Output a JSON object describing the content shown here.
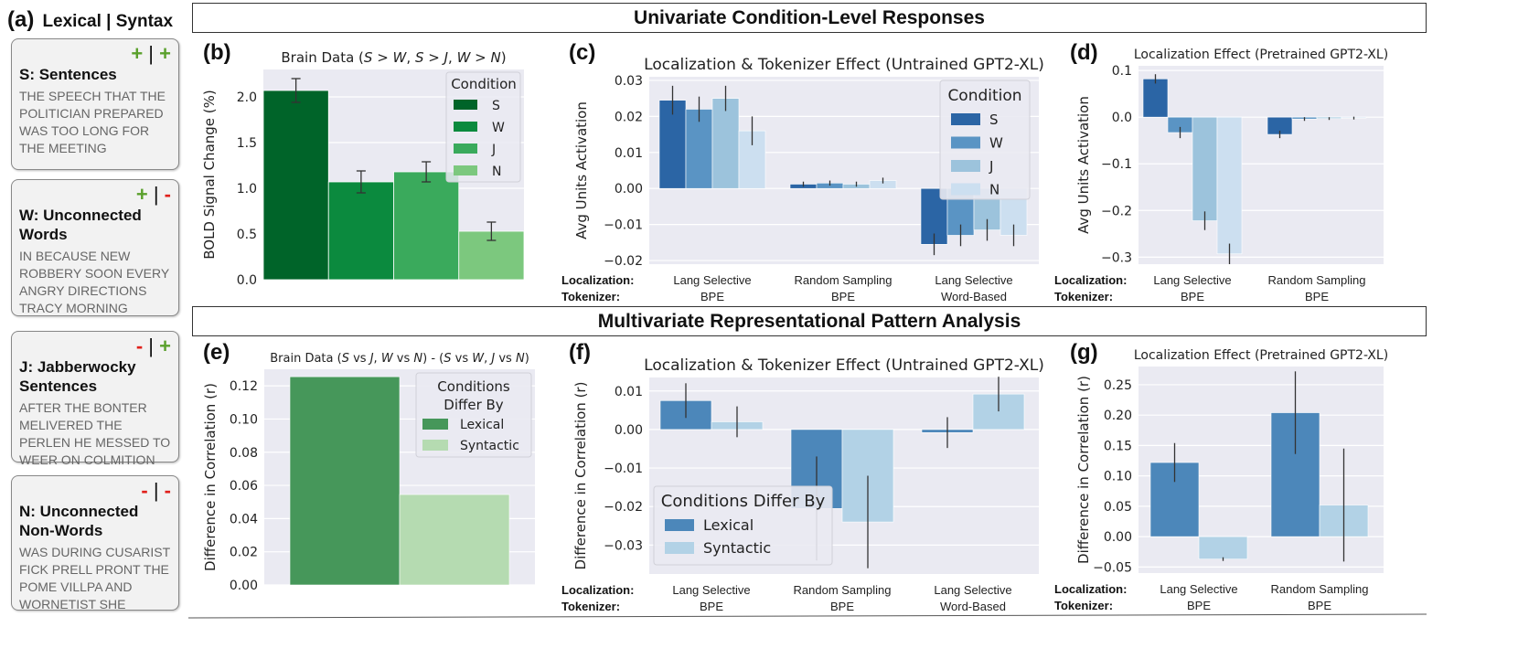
{
  "panel_a": {
    "letter": "(a)",
    "header": "Lexical | Syntax",
    "cards": [
      {
        "lex": "+",
        "syn": "+",
        "title": "S: Sentences",
        "text": "THE SPEECH THAT THE POLITICIAN PREPARED WAS TOO LONG FOR THE MEETING"
      },
      {
        "lex": "+",
        "syn": "-",
        "title": "W: Unconnected Words",
        "text": "IN BECAUSE NEW ROBBERY SOON EVERY ANGRY DIRECTIONS TRACY MORNING"
      },
      {
        "lex": "-",
        "syn": "+",
        "title": "J: Jabberwocky Sentences",
        "text": "AFTER THE BONTER MELIVERED THE PERLEN HE MESSED TO WEER ON COLMITION"
      },
      {
        "lex": "-",
        "syn": "-",
        "title": "N: Unconnected Non-Words",
        "text": "WAS DURING CUSARIST FICK PRELL PRONT THE POME VILLPA AND WORNETIST SHE"
      }
    ]
  },
  "sections": {
    "univariate": "Univariate Condition-Level Responses",
    "multivariate": "Multivariate Representational Pattern Analysis"
  },
  "row_labels": {
    "localization": "Localization:",
    "tokenizer": "Tokenizer:"
  },
  "colors": {
    "greens": [
      "#006429",
      "#0b8a3e",
      "#3aaa5c",
      "#7cc87e"
    ],
    "blues": [
      "#2b65a5",
      "#5a94c4",
      "#9cc3dc",
      "#ccdff0"
    ],
    "lexical_green": "#46975a",
    "syntactic_green": "#b5dbb1",
    "lexical_blue": "#4c87ba",
    "syntactic_blue": "#b2d2e6",
    "plot_bg": "#eaeaf2",
    "grid": "#ffffff"
  },
  "chart_data": [
    {
      "id": "b",
      "letter": "(b)",
      "type": "bar",
      "title": "Brain Data (S > W, S > J, W > N)",
      "ylabel": "BOLD Signal Change (%)",
      "ylim": [
        0,
        2.3
      ],
      "yticks": [
        "0.0",
        "0.5",
        "1.0",
        "1.5",
        "2.0"
      ],
      "ytick_values": [
        0,
        0.5,
        1.0,
        1.5,
        2.0
      ],
      "legend_title": "Condition",
      "legend_position": "top-right",
      "series": [
        {
          "name": "S",
          "value": 2.07,
          "err": 0.13
        },
        {
          "name": "W",
          "value": 1.07,
          "err": 0.12
        },
        {
          "name": "J",
          "value": 1.18,
          "err": 0.11
        },
        {
          "name": "N",
          "value": 0.53,
          "err": 0.1
        }
      ]
    },
    {
      "id": "c",
      "letter": "(c)",
      "type": "bar",
      "title": "Localization & Tokenizer Effect (Untrained GPT2-XL)",
      "ylabel": "Avg Units Activation",
      "ylim": [
        -0.021,
        0.031
      ],
      "yticks": [
        "0.03",
        "0.02",
        "0.01",
        "0.00",
        "−0.01",
        "−0.02"
      ],
      "ytick_values": [
        0.03,
        0.02,
        0.01,
        0,
        -0.01,
        -0.02
      ],
      "legend_title": "Condition",
      "legend_position": "top-right",
      "series_names": [
        "S",
        "W",
        "J",
        "N"
      ],
      "groups": [
        {
          "localization": "Lang Selective",
          "tokenizer": "BPE",
          "values": [
            0.0245,
            0.022,
            0.025,
            0.016
          ],
          "errs": [
            0.004,
            0.0035,
            0.0035,
            0.004
          ]
        },
        {
          "localization": "Random Sampling",
          "tokenizer": "BPE",
          "values": [
            0.0012,
            0.0015,
            0.0012,
            0.0022
          ],
          "errs": [
            0.0007,
            0.0007,
            0.0007,
            0.0008
          ]
        },
        {
          "localization": "Lang Selective",
          "tokenizer": "Word-Based",
          "values": [
            -0.0155,
            -0.013,
            -0.0115,
            -0.013
          ],
          "errs": [
            0.003,
            0.003,
            0.003,
            0.003
          ]
        }
      ]
    },
    {
      "id": "d",
      "letter": "(d)",
      "type": "bar",
      "title": "Localization Effect (Pretrained GPT2-XL)",
      "ylabel": "Avg Units Activation",
      "ylim": [
        -0.315,
        0.11
      ],
      "yticks": [
        "0.1",
        "0.0",
        "−0.1",
        "−0.2",
        "−0.3"
      ],
      "ytick_values": [
        0.1,
        0,
        -0.1,
        -0.2,
        -0.3
      ],
      "series_names": [
        "S",
        "W",
        "J",
        "N"
      ],
      "groups": [
        {
          "localization": "Lang Selective",
          "tokenizer": "BPE",
          "values": [
            0.082,
            -0.033,
            -0.222,
            -0.293
          ],
          "errs": [
            0.01,
            0.012,
            0.02,
            0.022
          ]
        },
        {
          "localization": "Random Sampling",
          "tokenizer": "BPE",
          "values": [
            -0.037,
            -0.004,
            -0.003,
            -0.002
          ],
          "errs": [
            0.008,
            0.004,
            0.003,
            0.003
          ]
        }
      ]
    },
    {
      "id": "e",
      "letter": "(e)",
      "type": "bar",
      "title": "Brain Data (S vs J, W vs N) - (S vs W, J vs N)",
      "ylabel": "Difference in Correlation (r)",
      "ylim": [
        0,
        0.13
      ],
      "yticks": [
        "0.00",
        "0.02",
        "0.04",
        "0.06",
        "0.08",
        "0.10",
        "0.12"
      ],
      "ytick_values": [
        0,
        0.02,
        0.04,
        0.06,
        0.08,
        0.1,
        0.12
      ],
      "legend_title": "Conditions Differ By",
      "legend_position": "top-right",
      "series": [
        {
          "name": "Lexical",
          "value": 0.1255
        },
        {
          "name": "Syntactic",
          "value": 0.0545
        }
      ]
    },
    {
      "id": "f",
      "letter": "(f)",
      "type": "bar",
      "title": "Localization & Tokenizer Effect (Untrained GPT2-XL)",
      "ylabel": "Difference in Correlation (r)",
      "ylim": [
        -0.0375,
        0.0135
      ],
      "yticks": [
        "0.01",
        "0.00",
        "−0.01",
        "−0.02",
        "−0.03"
      ],
      "ytick_values": [
        0.01,
        0,
        -0.01,
        -0.02,
        -0.03
      ],
      "legend_title": "Conditions Differ By",
      "legend_position": "bottom-left",
      "series_names": [
        "Lexical",
        "Syntactic"
      ],
      "groups": [
        {
          "localization": "Lang Selective",
          "tokenizer": "BPE",
          "values": [
            0.0075,
            0.002
          ],
          "errs": [
            0.0045,
            0.004
          ]
        },
        {
          "localization": "Random Sampling",
          "tokenizer": "BPE",
          "values": [
            -0.0205,
            -0.024
          ],
          "errs": [
            0.0135,
            0.012
          ]
        },
        {
          "localization": "Lang Selective",
          "tokenizer": "Word-Based",
          "values": [
            -0.0008,
            0.0092
          ],
          "errs": [
            0.004,
            0.0045
          ]
        }
      ]
    },
    {
      "id": "g",
      "letter": "(g)",
      "type": "bar",
      "title": "Localization Effect (Pretrained GPT2-XL)",
      "ylabel": "Difference in Correlation (r)",
      "ylim": [
        -0.06,
        0.28
      ],
      "yticks": [
        "0.25",
        "0.20",
        "0.15",
        "0.10",
        "0.05",
        "0.00",
        "−0.05"
      ],
      "ytick_values": [
        0.25,
        0.2,
        0.15,
        0.1,
        0.05,
        0,
        -0.05
      ],
      "series_names": [
        "Lexical",
        "Syntactic"
      ],
      "groups": [
        {
          "localization": "Lang Selective",
          "tokenizer": "BPE",
          "values": [
            0.122,
            -0.037
          ],
          "errs": [
            0.032,
            0.003
          ]
        },
        {
          "localization": "Random Sampling",
          "tokenizer": "BPE",
          "values": [
            0.204,
            0.052
          ],
          "errs": [
            0.068,
            0.093
          ]
        }
      ]
    }
  ]
}
